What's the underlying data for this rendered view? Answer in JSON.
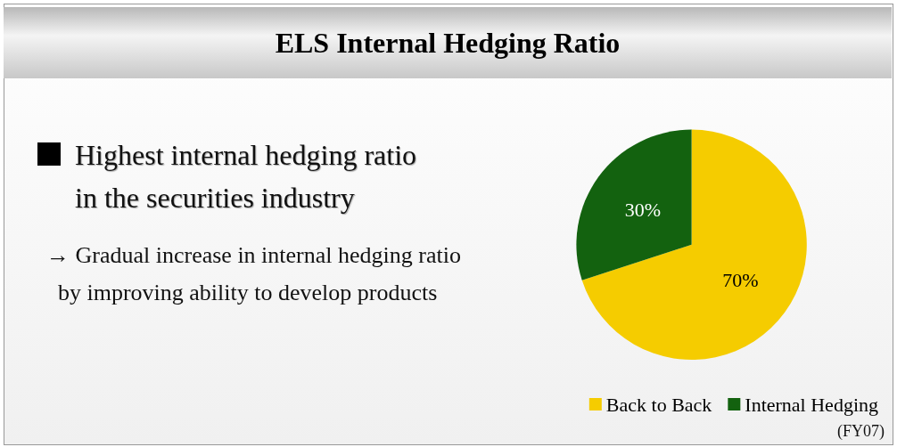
{
  "chart_data": {
    "type": "pie",
    "title": "ELS Internal Hedging Ratio",
    "categories": [
      "Back to Back",
      "Internal Hedging"
    ],
    "values": [
      70,
      30
    ],
    "colors": [
      "#f5cc00",
      "#13620f"
    ],
    "value_labels": [
      "70%",
      "30%"
    ],
    "legend": "bottom right",
    "annotations": [
      "Highest internal hedging ratio\nin the securities industry",
      "→ Gradual increase in internal hedging ratio\n  by improving ability to develop products",
      "(FY07)"
    ]
  }
}
